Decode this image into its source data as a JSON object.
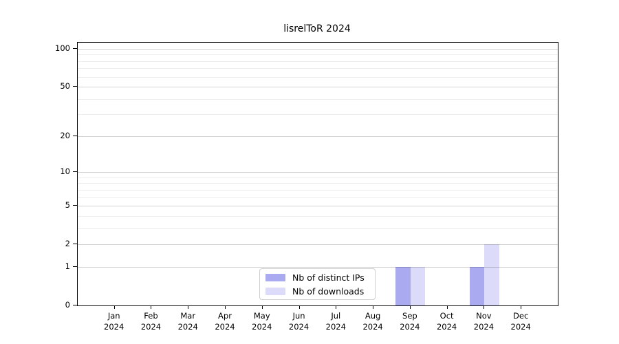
{
  "chart_data": {
    "type": "bar",
    "title": "lisrelToR 2024",
    "categories": [
      "Jan 2024",
      "Feb 2024",
      "Mar 2024",
      "Apr 2024",
      "May 2024",
      "Jun 2024",
      "Jul 2024",
      "Aug 2024",
      "Sep 2024",
      "Oct 2024",
      "Nov 2024",
      "Dec 2024"
    ],
    "series": [
      {
        "name": "Nb of distinct IPs",
        "color": "#aaaaf0",
        "values": [
          0,
          0,
          0,
          0,
          0,
          0,
          0,
          0,
          1,
          0,
          1,
          0
        ]
      },
      {
        "name": "Nb of downloads",
        "color": "#dcdcfa",
        "values": [
          0,
          0,
          0,
          0,
          0,
          0,
          0,
          0,
          1,
          0,
          2,
          0
        ]
      }
    ],
    "xlabel": "",
    "ylabel": "",
    "y_axis": {
      "scale": "log1p",
      "ticks": [
        0,
        1,
        2,
        5,
        10,
        20,
        50,
        100
      ],
      "minor_gridlines": [
        3,
        4,
        6,
        7,
        8,
        9,
        30,
        40,
        60,
        70,
        80,
        90
      ],
      "ylim_top_value": 100
    },
    "grid": true,
    "legend_position": "inside-bottom-center",
    "colors": {
      "axis": "#000000",
      "major_grid": "#d1d1d1",
      "minor_grid": "#ededed",
      "legend_border": "#cfcfcf",
      "background": "#ffffff"
    }
  }
}
